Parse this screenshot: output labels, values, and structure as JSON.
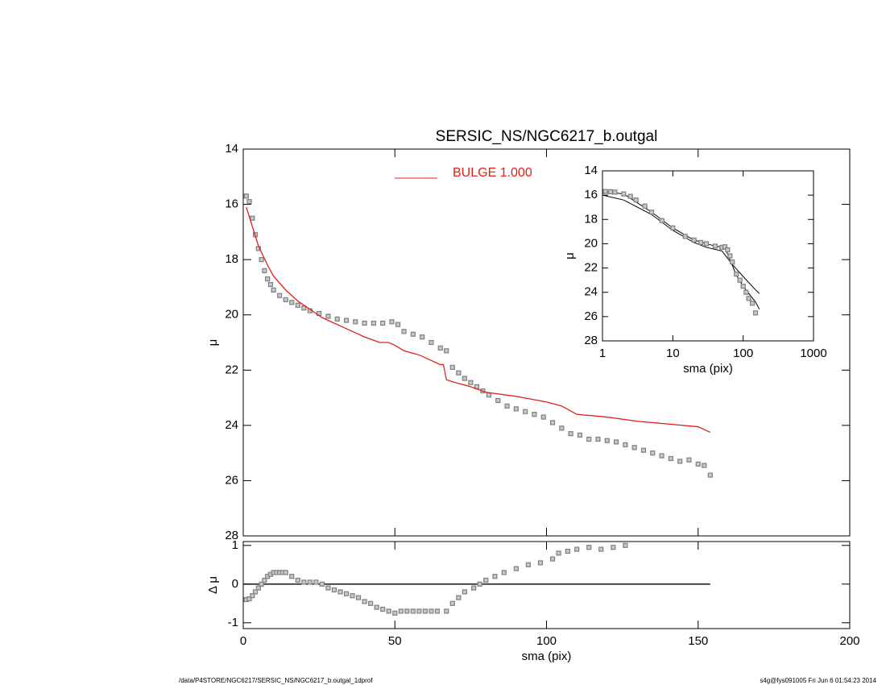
{
  "footer_left": "/data/P4STORE/NGC6217/SERSIC_NS/NGC6217_b.outgal_1dprof",
  "footer_right": "s4g@fys091005  Fri Jun  6 01:54:23 2014",
  "chart_data": [
    {
      "type": "scatter",
      "title": "SERSIC_NS/NGC6217_b.outgal",
      "y_label": "μ",
      "xlim": [
        0,
        200
      ],
      "xticks": [
        0,
        50,
        100,
        150,
        200
      ],
      "ylim": [
        28,
        14
      ],
      "yticks": [
        14,
        16,
        18,
        20,
        22,
        24,
        26,
        28
      ],
      "series": [
        {
          "style": "markers",
          "color": "#808080",
          "x": [
            1,
            2,
            3,
            4,
            5,
            6,
            7,
            8,
            9,
            10,
            12,
            14,
            16,
            18,
            20,
            22,
            25,
            28,
            31,
            34,
            37,
            40,
            43,
            46,
            49,
            51,
            53,
            56,
            59,
            62,
            65,
            67,
            69,
            71,
            73,
            75,
            77,
            79,
            81,
            84,
            87,
            90,
            93,
            96,
            99,
            102,
            105,
            108,
            111,
            114,
            117,
            120,
            123,
            126,
            129,
            132,
            135,
            138,
            141,
            144,
            147,
            150,
            152,
            154
          ],
          "values": [
            15.7,
            15.9,
            16.5,
            17.1,
            17.6,
            18.0,
            18.4,
            18.7,
            18.9,
            19.1,
            19.3,
            19.45,
            19.55,
            19.65,
            19.75,
            19.85,
            19.95,
            20.05,
            20.15,
            20.2,
            20.25,
            20.3,
            20.3,
            20.3,
            20.25,
            20.35,
            20.6,
            20.7,
            20.8,
            21.0,
            21.2,
            21.3,
            21.9,
            22.1,
            22.3,
            22.45,
            22.6,
            22.75,
            22.9,
            23.1,
            23.3,
            23.4,
            23.5,
            23.6,
            23.7,
            23.9,
            24.1,
            24.3,
            24.35,
            24.5,
            24.5,
            24.55,
            24.6,
            24.7,
            24.8,
            24.9,
            25.0,
            25.1,
            25.2,
            25.3,
            25.25,
            25.4,
            25.45,
            25.8
          ]
        },
        {
          "style": "line",
          "name": "BULGE  1.000",
          "color": "#e0201b",
          "x": [
            1,
            3,
            5,
            8,
            10,
            14,
            18,
            22,
            26,
            30,
            35,
            40,
            45,
            48,
            50,
            53,
            58,
            62,
            65,
            66,
            67,
            70,
            75,
            80,
            90,
            100,
            105,
            110,
            120,
            130,
            135,
            140,
            150,
            154
          ],
          "values": [
            16.1,
            16.8,
            17.5,
            18.2,
            18.6,
            19.1,
            19.5,
            19.8,
            20.1,
            20.3,
            20.55,
            20.8,
            21.0,
            21.0,
            21.1,
            21.3,
            21.45,
            21.65,
            21.8,
            21.8,
            22.35,
            22.45,
            22.6,
            22.8,
            22.95,
            23.15,
            23.3,
            23.6,
            23.7,
            23.85,
            23.9,
            23.95,
            24.05,
            24.25
          ]
        }
      ]
    },
    {
      "type": "scatter",
      "x_label": "sma (pix)",
      "y_label": "Δ μ",
      "xlim": [
        0,
        200
      ],
      "xticks": [
        0,
        50,
        100,
        150,
        200
      ],
      "ylim": [
        -1.15,
        1.1
      ],
      "yticks": [
        -1,
        0,
        1
      ],
      "series": [
        {
          "style": "line",
          "color": "#000000",
          "x": [
            0,
            154
          ],
          "values": [
            0,
            0
          ]
        },
        {
          "style": "markers",
          "color": "#808080",
          "x": [
            1,
            2,
            3,
            4,
            5,
            6,
            7,
            8,
            9,
            10,
            11,
            12,
            13,
            14,
            16,
            18,
            20,
            22,
            24,
            26,
            28,
            30,
            32,
            34,
            36,
            38,
            40,
            42,
            44,
            46,
            48,
            50,
            52,
            54,
            56,
            58,
            60,
            62,
            64,
            67,
            69,
            71,
            73,
            76,
            78,
            80,
            83,
            86,
            90,
            94,
            98,
            102,
            104,
            107,
            110,
            114,
            118,
            122,
            126
          ],
          "values": [
            -0.4,
            -0.38,
            -0.3,
            -0.2,
            -0.1,
            0.0,
            0.1,
            0.2,
            0.25,
            0.3,
            0.3,
            0.3,
            0.3,
            0.3,
            0.2,
            0.1,
            0.05,
            0.05,
            0.05,
            0.0,
            -0.1,
            -0.15,
            -0.2,
            -0.25,
            -0.3,
            -0.35,
            -0.45,
            -0.5,
            -0.6,
            -0.65,
            -0.7,
            -0.75,
            -0.7,
            -0.7,
            -0.7,
            -0.7,
            -0.7,
            -0.7,
            -0.7,
            -0.7,
            -0.5,
            -0.35,
            -0.2,
            -0.1,
            0.0,
            0.1,
            0.2,
            0.3,
            0.4,
            0.5,
            0.55,
            0.65,
            0.8,
            0.85,
            0.9,
            0.95,
            0.9,
            0.95,
            1.0
          ]
        }
      ]
    },
    {
      "type": "scatter",
      "x_label": "sma (pix)",
      "y_label": "μ",
      "xlog": true,
      "xlim": [
        1,
        1000
      ],
      "xticks": [
        1,
        10,
        100,
        1000
      ],
      "ylim": [
        28,
        14
      ],
      "yticks": [
        14,
        16,
        18,
        20,
        22,
        24,
        26,
        28
      ],
      "series": [
        {
          "style": "line",
          "color": "#000000",
          "x": [
            1,
            2,
            5,
            10,
            20,
            30,
            50,
            70,
            100,
            150,
            170
          ],
          "values": [
            16.0,
            16.4,
            17.6,
            18.9,
            19.9,
            20.3,
            20.6,
            21.7,
            22.7,
            23.8,
            24.1
          ]
        },
        {
          "style": "line",
          "color": "#000000",
          "x": [
            1,
            2,
            5,
            10,
            20,
            40,
            55,
            65,
            80,
            100,
            150,
            170
          ],
          "values": [
            15.7,
            15.9,
            17.4,
            18.7,
            19.7,
            20.2,
            20.3,
            21.3,
            22.6,
            23.5,
            24.8,
            25.4
          ]
        },
        {
          "style": "markers",
          "color": "#808080",
          "x": [
            1.1,
            1.3,
            1.5,
            2,
            2.5,
            3,
            4,
            5,
            7,
            10,
            15,
            20,
            25,
            30,
            40,
            50,
            55,
            60,
            65,
            70,
            80,
            90,
            100,
            110,
            120,
            135,
            150
          ],
          "values": [
            15.7,
            15.72,
            15.75,
            15.9,
            16.1,
            16.4,
            16.9,
            17.4,
            18.1,
            18.7,
            19.4,
            19.7,
            19.9,
            20.0,
            20.2,
            20.3,
            20.25,
            20.5,
            21.0,
            21.5,
            22.5,
            23.0,
            23.5,
            24.0,
            24.5,
            24.9,
            25.7
          ]
        }
      ]
    }
  ]
}
